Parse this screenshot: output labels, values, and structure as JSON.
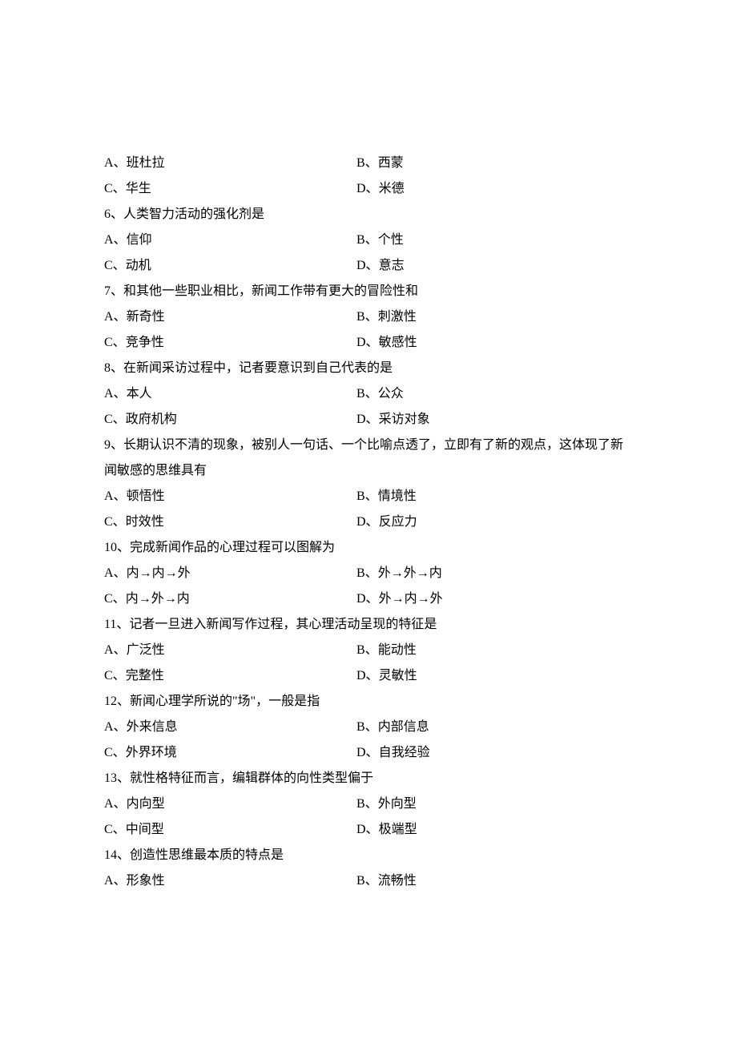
{
  "questions": [
    {
      "optionsOnly": true,
      "options": [
        {
          "label": "A、",
          "text": "班杜拉"
        },
        {
          "label": "B、",
          "text": "西蒙"
        },
        {
          "label": "C、",
          "text": "华生"
        },
        {
          "label": "D、",
          "text": "米德"
        }
      ]
    },
    {
      "number": "6、",
      "stem": "人类智力活动的强化剂是",
      "options": [
        {
          "label": "A、",
          "text": "信仰"
        },
        {
          "label": "B、",
          "text": "个性"
        },
        {
          "label": "C、",
          "text": "动机"
        },
        {
          "label": "D、",
          "text": "意志"
        }
      ]
    },
    {
      "number": "7、",
      "stem": "和其他一些职业相比，新闻工作带有更大的冒险性和",
      "options": [
        {
          "label": "A、",
          "text": "新奇性"
        },
        {
          "label": "B、",
          "text": "刺激性"
        },
        {
          "label": "C、",
          "text": "竞争性"
        },
        {
          "label": "D、",
          "text": "敏感性"
        }
      ]
    },
    {
      "number": "8、",
      "stem": "在新闻采访过程中，记者要意识到自己代表的是",
      "options": [
        {
          "label": "A、",
          "text": "本人"
        },
        {
          "label": "B、",
          "text": "公众"
        },
        {
          "label": "C、",
          "text": "政府机构"
        },
        {
          "label": "D、",
          "text": "采访对象"
        }
      ]
    },
    {
      "number": "9、",
      "stem": "长期认识不清的现象，被别人一句话、一个比喻点透了，立即有了新的观点，这体现了新闻敏感的思维具有",
      "options": [
        {
          "label": "A、",
          "text": "顿悟性"
        },
        {
          "label": "B、",
          "text": "情境性"
        },
        {
          "label": "C、",
          "text": "时效性"
        },
        {
          "label": "D、",
          "text": "反应力"
        }
      ]
    },
    {
      "number": "10、",
      "stem": "完成新闻作品的心理过程可以图解为",
      "options": [
        {
          "label": "A、",
          "text": "内→内→外"
        },
        {
          "label": "B、",
          "text": "外→外→内"
        },
        {
          "label": "C、",
          "text": "内→外→内"
        },
        {
          "label": "D、",
          "text": "外→内→外"
        }
      ]
    },
    {
      "number": "11、",
      "stem": "记者一旦进入新闻写作过程，其心理活动呈现的特征是",
      "options": [
        {
          "label": "A、",
          "text": "广泛性"
        },
        {
          "label": "B、",
          "text": "能动性"
        },
        {
          "label": "C、",
          "text": "完整性"
        },
        {
          "label": "D、",
          "text": "灵敏性"
        }
      ]
    },
    {
      "number": "12、",
      "stem": "新闻心理学所说的\"场\"，一般是指",
      "options": [
        {
          "label": "A、",
          "text": "外来信息"
        },
        {
          "label": "B、",
          "text": "内部信息"
        },
        {
          "label": "C、",
          "text": "外界环境"
        },
        {
          "label": "D、",
          "text": "自我经验"
        }
      ]
    },
    {
      "number": "13、",
      "stem": "就性格特征而言，编辑群体的向性类型偏于",
      "options": [
        {
          "label": "A、",
          "text": "内向型"
        },
        {
          "label": "B、",
          "text": "外向型"
        },
        {
          "label": "C、",
          "text": "中间型"
        },
        {
          "label": "D、",
          "text": "极端型"
        }
      ]
    },
    {
      "number": "14、",
      "stem": "创造性思维最本质的特点是",
      "options": [
        {
          "label": "A、",
          "text": "形象性"
        },
        {
          "label": "B、",
          "text": "流畅性"
        }
      ]
    }
  ]
}
